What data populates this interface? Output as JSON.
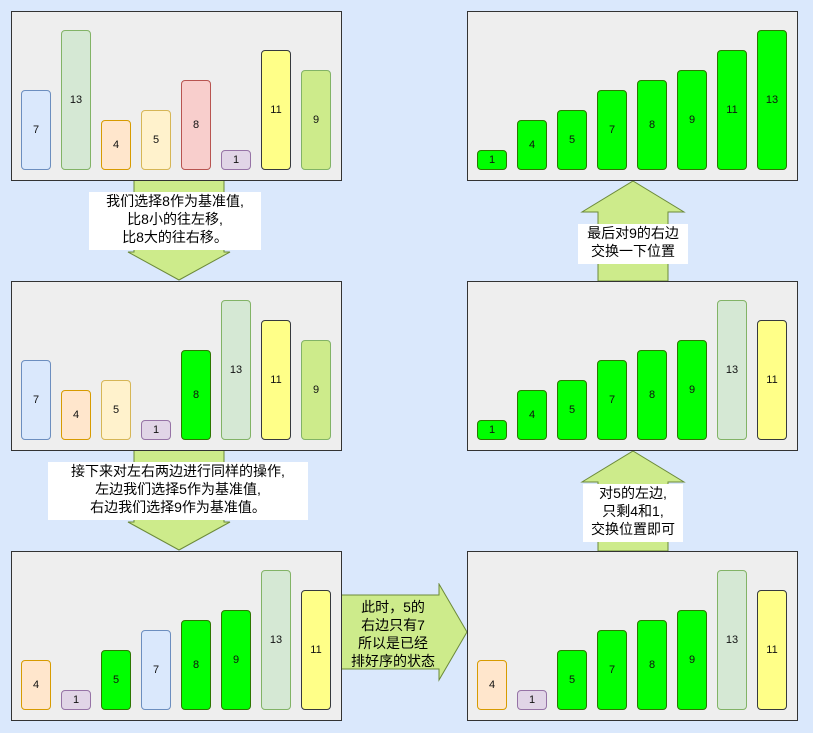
{
  "colors": {
    "background": "#dae8fc",
    "panel": "#eeeeee",
    "arrow_fill": "#cdeb8b",
    "arrow_stroke": "#6c8a3a",
    "value_colors": {
      "1": {
        "fill": "#e1d5e7",
        "stroke": "#9673a6"
      },
      "4": {
        "fill": "#ffe6cc",
        "stroke": "#d79b00"
      },
      "5": {
        "fill": "#fff2cc",
        "stroke": "#d6b656"
      },
      "7": {
        "fill": "#dae8fc",
        "stroke": "#6c8ebf"
      },
      "8": {
        "fill": "#f8cecc",
        "stroke": "#b85450"
      },
      "9": {
        "fill": "#cdeb8b",
        "stroke": "#82b366"
      },
      "11": {
        "fill": "#ffff88",
        "stroke": "#36393d"
      },
      "13": {
        "fill": "#d5e8d4",
        "stroke": "#82b366"
      },
      "sorted": {
        "fill": "#00ff00",
        "stroke": "#2d7600"
      }
    }
  },
  "panels": [
    {
      "id": "step1",
      "bars": [
        {
          "value": 7,
          "sorted": false
        },
        {
          "value": 13,
          "sorted": false
        },
        {
          "value": 4,
          "sorted": false
        },
        {
          "value": 5,
          "sorted": false
        },
        {
          "value": 8,
          "sorted": false
        },
        {
          "value": 1,
          "sorted": false
        },
        {
          "value": 11,
          "sorted": false
        },
        {
          "value": 9,
          "sorted": false
        }
      ]
    },
    {
      "id": "step2",
      "bars": [
        {
          "value": 7,
          "sorted": false
        },
        {
          "value": 4,
          "sorted": false
        },
        {
          "value": 5,
          "sorted": false
        },
        {
          "value": 1,
          "sorted": false
        },
        {
          "value": 8,
          "sorted": true
        },
        {
          "value": 13,
          "sorted": false
        },
        {
          "value": 11,
          "sorted": false
        },
        {
          "value": 9,
          "sorted": false
        }
      ]
    },
    {
      "id": "step3",
      "bars": [
        {
          "value": 4,
          "sorted": false
        },
        {
          "value": 1,
          "sorted": false
        },
        {
          "value": 5,
          "sorted": true
        },
        {
          "value": 7,
          "sorted": false
        },
        {
          "value": 8,
          "sorted": true
        },
        {
          "value": 9,
          "sorted": true
        },
        {
          "value": 13,
          "sorted": false
        },
        {
          "value": 11,
          "sorted": false
        }
      ]
    },
    {
      "id": "step4",
      "bars": [
        {
          "value": 4,
          "sorted": false
        },
        {
          "value": 1,
          "sorted": false
        },
        {
          "value": 5,
          "sorted": true
        },
        {
          "value": 7,
          "sorted": true
        },
        {
          "value": 8,
          "sorted": true
        },
        {
          "value": 9,
          "sorted": true
        },
        {
          "value": 13,
          "sorted": false
        },
        {
          "value": 11,
          "sorted": false
        }
      ]
    },
    {
      "id": "step5",
      "bars": [
        {
          "value": 1,
          "sorted": true
        },
        {
          "value": 4,
          "sorted": true
        },
        {
          "value": 5,
          "sorted": true
        },
        {
          "value": 7,
          "sorted": true
        },
        {
          "value": 8,
          "sorted": true
        },
        {
          "value": 9,
          "sorted": true
        },
        {
          "value": 13,
          "sorted": false
        },
        {
          "value": 11,
          "sorted": false
        }
      ]
    },
    {
      "id": "step6",
      "bars": [
        {
          "value": 1,
          "sorted": true
        },
        {
          "value": 4,
          "sorted": true
        },
        {
          "value": 5,
          "sorted": true
        },
        {
          "value": 7,
          "sorted": true
        },
        {
          "value": 8,
          "sorted": true
        },
        {
          "value": 9,
          "sorted": true
        },
        {
          "value": 11,
          "sorted": true
        },
        {
          "value": 13,
          "sorted": true
        }
      ]
    }
  ],
  "notes": {
    "n1": "我们选择8作为基准值,\n比8小的往左移,\n比8大的往右移。",
    "n2": "接下来对左右两边进行同样的操作,\n左边我们选择5作为基准值,\n右边我们选择9作为基准值。",
    "n3": "此时，5的\n右边只有7\n所以是已经\n排好序的状态",
    "n4": "对5的左边,\n只剩4和1,\n交换位置即可",
    "n5": "最后对9的右边\n交换一下位置"
  }
}
